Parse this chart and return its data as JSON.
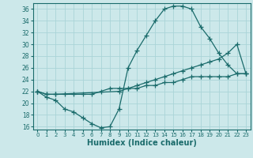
{
  "xlabel": "Humidex (Indice chaleur)",
  "bg_color": "#cce8ea",
  "grid_color": "#aad4d8",
  "line_color": "#1a6b6b",
  "xlim": [
    -0.5,
    23.5
  ],
  "ylim": [
    15.5,
    37
  ],
  "xticks": [
    0,
    1,
    2,
    3,
    4,
    5,
    6,
    7,
    8,
    9,
    10,
    11,
    12,
    13,
    14,
    15,
    16,
    17,
    18,
    19,
    20,
    21,
    22,
    23
  ],
  "yticks": [
    16,
    18,
    20,
    22,
    24,
    26,
    28,
    30,
    32,
    34,
    36
  ],
  "curve1_x": [
    0,
    1,
    2,
    3,
    4,
    5,
    6,
    7,
    8,
    9,
    10,
    11,
    12,
    13,
    14,
    15,
    16,
    17,
    18,
    19,
    20,
    21,
    22,
    23
  ],
  "curve1_y": [
    22,
    21,
    20.5,
    19,
    18.5,
    17.5,
    16.5,
    15.8,
    16,
    19,
    26,
    29,
    31.5,
    34,
    36,
    36.5,
    36.5,
    36,
    33,
    31,
    28.5,
    26.5,
    25,
    25
  ],
  "curve2_x": [
    0,
    1,
    2,
    9,
    10,
    11,
    12,
    13,
    14,
    15,
    16,
    17,
    18,
    19,
    20,
    21,
    22,
    23
  ],
  "curve2_y": [
    22,
    21.5,
    21.5,
    22,
    22.5,
    23,
    23.5,
    24,
    24.5,
    25,
    25.5,
    26,
    26.5,
    27,
    27.5,
    28.5,
    30,
    25
  ],
  "curve3_x": [
    0,
    1,
    2,
    3,
    4,
    5,
    6,
    7,
    8,
    9,
    10,
    11,
    12,
    13,
    14,
    15,
    16,
    17,
    18,
    19,
    20,
    21,
    22,
    23
  ],
  "curve3_y": [
    22,
    21.5,
    21.5,
    21.5,
    21.5,
    21.5,
    21.5,
    22,
    22.5,
    22.5,
    22.5,
    22.5,
    23,
    23,
    23.5,
    23.5,
    24,
    24.5,
    24.5,
    24.5,
    24.5,
    24.5,
    25,
    25
  ]
}
